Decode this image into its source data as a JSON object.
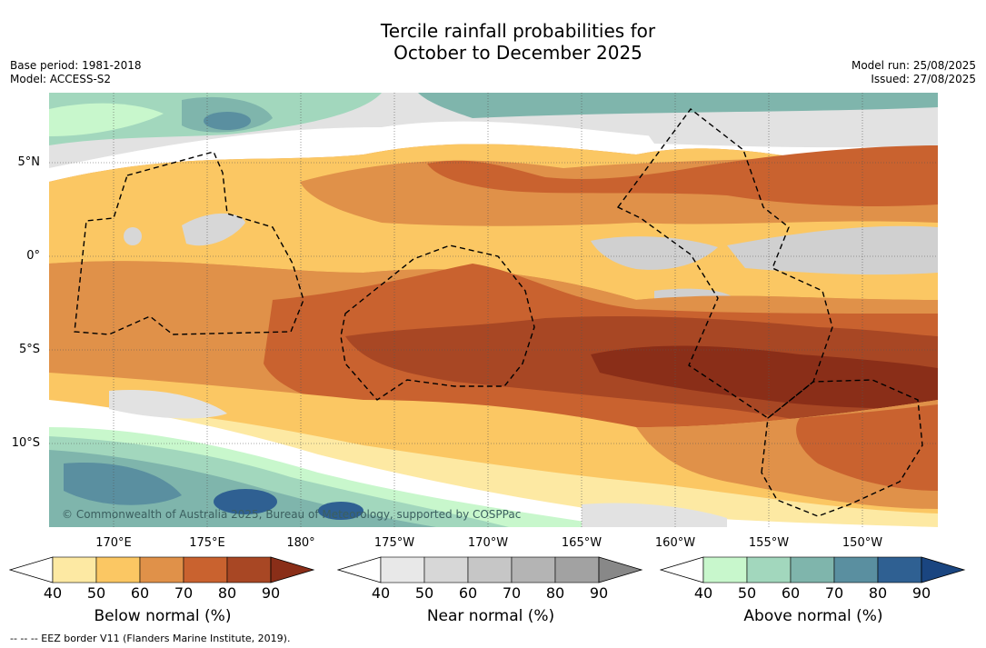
{
  "title": {
    "line1": "Tercile rainfall probabilities for",
    "line2": "October to December 2025"
  },
  "meta_left": {
    "base_period": "Base period: 1981-2018",
    "model": "Model: ACCESS-S2"
  },
  "meta_right": {
    "model_run": "Model run: 25/08/2025",
    "issued": "Issued: 27/08/2025"
  },
  "latitude_labels": [
    "5°N",
    "0°",
    "5°S",
    "10°S"
  ],
  "longitude_labels": [
    "170°E",
    "175°E",
    "180°",
    "175°W",
    "170°W",
    "165°W",
    "160°W",
    "155°W",
    "150°W"
  ],
  "copyright": "© Commonwealth of Australia 2025, Bureau of Meteorology, supported by COSPPac",
  "colorbars": [
    {
      "label": "Below normal (%)",
      "ticks": [
        "40",
        "50",
        "60",
        "70",
        "80",
        "90"
      ],
      "colors": [
        "#ffffff",
        "#fde9a3",
        "#fbc763",
        "#e09149",
        "#c9622f",
        "#a84724",
        "#8a2e18"
      ]
    },
    {
      "label": "Near normal (%)",
      "ticks": [
        "40",
        "50",
        "60",
        "70",
        "80",
        "90"
      ],
      "colors": [
        "#ffffff",
        "#e8e8e8",
        "#d7d7d7",
        "#c6c6c6",
        "#b4b4b4",
        "#a2a2a2",
        "#888888"
      ]
    },
    {
      "label": "Above normal (%)",
      "ticks": [
        "40",
        "50",
        "60",
        "70",
        "80",
        "90"
      ],
      "colors": [
        "#ffffff",
        "#c8f7cc",
        "#a2d7bd",
        "#7fb5ac",
        "#5a8fa0",
        "#2f6092",
        "#1a4580"
      ]
    }
  ],
  "footer": "--  --  -- EEZ border V11 (Flanders Marine Institute, 2019)."
}
